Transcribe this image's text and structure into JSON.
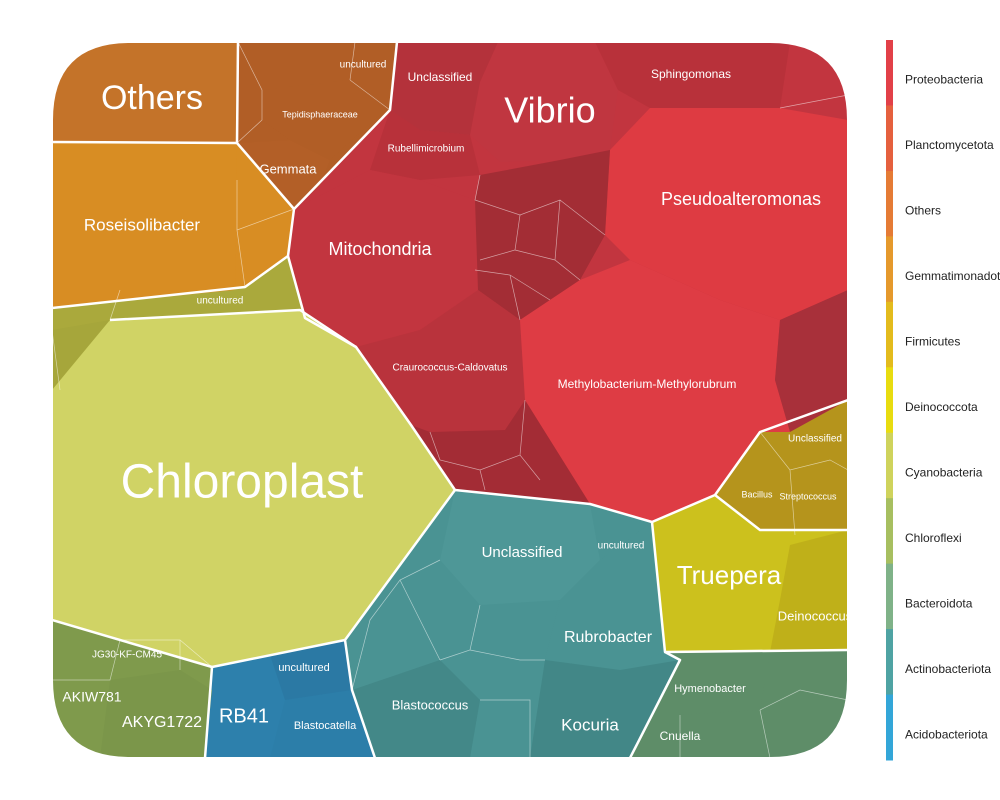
{
  "chart_data": {
    "type": "voronoi-treemap",
    "title": "",
    "phyla": [
      {
        "name": "Proteobacteria",
        "color": "#e24048"
      },
      {
        "name": "Planctomycetota",
        "color": "#e5603e"
      },
      {
        "name": "Others",
        "color": "#e57b35"
      },
      {
        "name": "Gemmatimonadota",
        "color": "#e5992c"
      },
      {
        "name": "Firmicutes",
        "color": "#e3bb1d"
      },
      {
        "name": "Deinococcota",
        "color": "#e8dc10"
      },
      {
        "name": "Cyanobacteria",
        "color": "#cfd35c"
      },
      {
        "name": "Chloroflexi",
        "color": "#a7bf60"
      },
      {
        "name": "Bacteroidota",
        "color": "#7fb288"
      },
      {
        "name": "Actinobacteriota",
        "color": "#4fa3a3"
      },
      {
        "name": "Acidobacteriota",
        "color": "#33a6d8"
      }
    ],
    "taxa": [
      {
        "label": "Others",
        "phylum": "Others",
        "fill": "#c47329"
      },
      {
        "label": "Roseisolibacter",
        "phylum": "Gemmatimonadota",
        "fill": "#d88d23"
      },
      {
        "label": "Vibrio",
        "phylum": "Proteobacteria",
        "fill": "#c23540"
      },
      {
        "label": "Pseudoalteromonas",
        "phylum": "Proteobacteria",
        "fill": "#de3b42"
      },
      {
        "label": "Mitochondria",
        "phylum": "Proteobacteria",
        "fill": "#c2353f"
      },
      {
        "label": "Methylobacterium-Methylorubrum",
        "phylum": "Proteobacteria",
        "fill": "#de3c44"
      },
      {
        "label": "Craurococcus-Caldovatus",
        "phylum": "Proteobacteria",
        "fill": "#b9333c"
      },
      {
        "label": "Sphingomonas",
        "phylum": "Proteobacteria",
        "fill": "#b8313a"
      },
      {
        "label": "Unclassified",
        "phylum": "Proteobacteria",
        "fill": "#b52f3a"
      },
      {
        "label": "Rubellimicrobium",
        "phylum": "Proteobacteria",
        "fill": "#b8313a"
      },
      {
        "label": "Chloroplast",
        "phylum": "Cyanobacteria",
        "fill": "#d0d365"
      },
      {
        "label": "uncultured",
        "phylum": "Cyanobacteria",
        "fill": "#a6a63b"
      },
      {
        "label": "Truepera",
        "phylum": "Deinococcota",
        "fill": "#ccc11d"
      },
      {
        "label": "Deinococcus",
        "phylum": "Deinococcota",
        "fill": "#bfb019"
      },
      {
        "label": "Unclassified",
        "phylum": "Firmicutes",
        "fill": "#b89a1f"
      },
      {
        "label": "Streptococcus",
        "phylum": "Firmicutes",
        "fill": "#b5941c"
      },
      {
        "label": "Bacillus",
        "phylum": "Firmicutes",
        "fill": "#b5941c"
      },
      {
        "label": "Unclassified",
        "phylum": "Actinobacteriota",
        "fill": "#4d9696"
      },
      {
        "label": "Rubrobacter",
        "phylum": "Actinobacteriota",
        "fill": "#4a9393"
      },
      {
        "label": "Blastococcus",
        "phylum": "Actinobacteriota",
        "fill": "#438888"
      },
      {
        "label": "Kocuria",
        "phylum": "Actinobacteriota",
        "fill": "#428787"
      },
      {
        "label": "uncultured",
        "phylum": "Actinobacteriota",
        "fill": "#478f8f"
      },
      {
        "label": "RB41",
        "phylum": "Acidobacteriota",
        "fill": "#2d80ac"
      },
      {
        "label": "Blastocatella",
        "phylum": "Acidobacteriota",
        "fill": "#2c7ea9"
      },
      {
        "label": "uncultured",
        "phylum": "Acidobacteriota",
        "fill": "#2b79a4"
      },
      {
        "label": "AKYG1722",
        "phylum": "Chloroflexi",
        "fill": "#7f9a4c"
      },
      {
        "label": "AKIW781",
        "phylum": "Chloroflexi",
        "fill": "#7f9a4c"
      },
      {
        "label": "JG30-KF-CM45",
        "phylum": "Chloroflexi",
        "fill": "#7a954a"
      },
      {
        "label": "Hymenobacter",
        "phylum": "Bacteroidota",
        "fill": "#5e8d68"
      },
      {
        "label": "Cnuella",
        "phylum": "Bacteroidota",
        "fill": "#5a8964"
      },
      {
        "label": "Gemmata",
        "phylum": "Planctomycetota",
        "fill": "#b35f27"
      },
      {
        "label": "Tepidisphaeraceae",
        "phylum": "Planctomycetota",
        "fill": "#b15e26"
      },
      {
        "label": "uncultured",
        "phylum": "Planctomycetota",
        "fill": "#ad5a24"
      }
    ]
  }
}
